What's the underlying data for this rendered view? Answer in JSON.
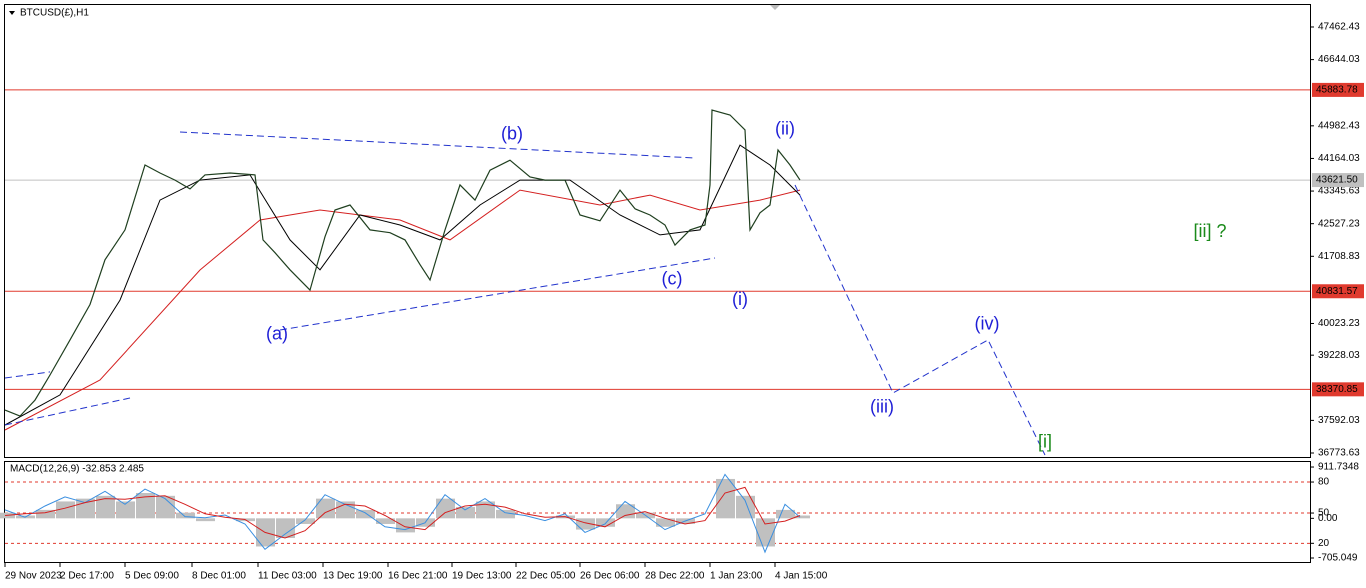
{
  "chart_data": {
    "type": "line",
    "title": "BTCUSD(£),H1",
    "xlim": [
      0,
      1305
    ],
    "ylim": [
      36673,
      48014
    ],
    "yticks": [
      47462.43,
      46644.03,
      44982.43,
      44164.03,
      43345.63,
      42527.23,
      41708.83,
      40023.23,
      39228.03,
      37592.03,
      36773.63
    ],
    "xticks": [
      {
        "value": 0,
        "label": "29 Nov 2023"
      },
      {
        "value": 55,
        "label": "2 Dec 17:00"
      },
      {
        "value": 120,
        "label": "5 Dec 09:00"
      },
      {
        "value": 187,
        "label": "8 Dec 01:00"
      },
      {
        "value": 253,
        "label": "11 Dec 03:00"
      },
      {
        "value": 318,
        "label": "13 Dec 19:00"
      },
      {
        "value": 383,
        "label": "16 Dec 21:00"
      },
      {
        "value": 447,
        "label": "19 Dec 13:00"
      },
      {
        "value": 511,
        "label": "22 Dec 05:00"
      },
      {
        "value": 575,
        "label": "26 Dec 06:00"
      },
      {
        "value": 640,
        "label": "28 Dec 22:00"
      },
      {
        "value": 705,
        "label": "1 Jan 23:00"
      },
      {
        "value": 770,
        "label": "4 Jan 15:00"
      }
    ],
    "color": "#1f3f1f",
    "x": [
      0,
      15,
      30,
      45,
      65,
      85,
      100,
      120,
      140,
      155,
      170,
      185,
      200,
      225,
      250,
      258,
      270,
      285,
      305,
      320,
      330,
      345,
      365,
      385,
      400,
      415,
      425,
      440,
      455,
      470,
      485,
      505,
      525,
      540,
      560,
      575,
      595,
      615,
      630,
      645,
      660,
      670,
      685,
      700,
      705,
      707,
      725,
      740,
      745,
      755,
      765,
      773,
      785,
      795
    ],
    "values": [
      37850,
      37700,
      38100,
      38730,
      39610,
      40500,
      41620,
      42370,
      44000,
      43800,
      43620,
      43400,
      43750,
      43800,
      43750,
      42120,
      41800,
      41370,
      40860,
      42200,
      42870,
      42995,
      42370,
      42300,
      42120,
      41500,
      41115,
      42370,
      43500,
      43120,
      43870,
      44120,
      43700,
      43620,
      43620,
      42745,
      42600,
      43370,
      42900,
      42745,
      42495,
      41990,
      42370,
      42495,
      43500,
      45380,
      45255,
      44880,
      42370,
      42800,
      42995,
      44375,
      44000,
      43620
    ],
    "overlays": [
      {
        "color": "#d42020",
        "x": [
          0,
          95,
          195,
          255,
          315,
          395,
          445,
          515,
          595,
          645,
          695,
          755,
          795
        ],
        "values": [
          37350,
          38605,
          41365,
          42620,
          42870,
          42620,
          42120,
          43370,
          42995,
          43245,
          42870,
          43120,
          43370
        ]
      },
      {
        "color": "#000000",
        "x": [
          0,
          55,
          115,
          155,
          195,
          245,
          285,
          315,
          355,
          395,
          435,
          475,
          515,
          565,
          615,
          655,
          695,
          735,
          765,
          795
        ],
        "values": [
          37475,
          38230,
          40610,
          43120,
          43620,
          43750,
          42120,
          41370,
          42745,
          42495,
          42120,
          42995,
          43620,
          43620,
          42745,
          42245,
          42370,
          44500,
          44000,
          43245
        ]
      }
    ],
    "levels": [
      {
        "value": 45883.78,
        "color": "#e03a2e"
      },
      {
        "value": 40831.57,
        "color": "#e03a2e"
      },
      {
        "value": 38370.85,
        "color": "#e03a2e"
      },
      {
        "value": 43621.5,
        "label": "43621.50",
        "color": "#c0c0c0"
      }
    ],
    "trendlines": [
      {
        "color": "#2233cc",
        "x": [
          175,
          690
        ],
        "values": [
          44828,
          44175
        ]
      },
      {
        "color": "#2233cc",
        "x": [
          275,
          710
        ],
        "values": [
          39860,
          41666
        ]
      },
      {
        "color": "#2233cc",
        "x": [
          0,
          125
        ],
        "values": [
          37476,
          38153
        ]
      },
      {
        "color": "#2233cc",
        "x": [
          0,
          45
        ],
        "values": [
          38656,
          38807
        ]
      },
      {
        "color": "#2233cc",
        "x": [
          790,
          888,
          983,
          1040
        ],
        "values": [
          43498,
          38280,
          39610,
          36724
        ]
      }
    ],
    "annotations": [
      {
        "text": "(a)",
        "x": 272,
        "y": 39735,
        "color": "#1e1ed6"
      },
      {
        "text": "(b)",
        "x": 507,
        "y": 44753,
        "color": "#1e1ed6"
      },
      {
        "text": "(c)",
        "x": 667,
        "y": 41115,
        "color": "#1e1ed6"
      },
      {
        "text": "(i)",
        "x": 735,
        "y": 40612,
        "color": "#1e1ed6"
      },
      {
        "text": "(ii)",
        "x": 780,
        "y": 44880,
        "color": "#1e1ed6"
      },
      {
        "text": "(iii)",
        "x": 877,
        "y": 37903,
        "color": "#1e1ed6"
      },
      {
        "text": "(iv)",
        "x": 982,
        "y": 39985,
        "color": "#1e1ed6"
      },
      {
        "text": "[i]",
        "x": 1040,
        "y": 37025,
        "color": "#1a8a1a"
      },
      {
        "text": "[ii] ?",
        "x": 1205,
        "y": 42318,
        "color": "#1a8a1a"
      }
    ],
    "macd": {
      "label": "MACD(12,26,9) -32.853 2.485",
      "ylim": [
        -776,
        1001
      ],
      "yticks": [
        911.7348,
        {
          "value": 645,
          "label": "80"
        },
        {
          "value": 94,
          "label": "50"
        },
        {
          "value": 0,
          "label": "0.00"
        },
        {
          "value": -444,
          "label": "20"
        },
        -705.049
      ],
      "levels": [
        645,
        94,
        -444
      ],
      "x": [
        0,
        20,
        40,
        60,
        80,
        100,
        120,
        140,
        160,
        180,
        200,
        220,
        240,
        260,
        280,
        300,
        320,
        340,
        360,
        380,
        400,
        420,
        440,
        460,
        480,
        500,
        520,
        540,
        560,
        580,
        600,
        620,
        640,
        660,
        680,
        700,
        720,
        740,
        760,
        780,
        795
      ],
      "histogram": [
        100,
        50,
        150,
        300,
        350,
        400,
        300,
        450,
        400,
        100,
        -50,
        0,
        -50,
        -500,
        -350,
        -100,
        350,
        300,
        150,
        -100,
        -250,
        -150,
        350,
        200,
        300,
        150,
        0,
        0,
        50,
        -200,
        -150,
        250,
        100,
        -150,
        -100,
        0,
        700,
        400,
        -500,
        150,
        50
      ],
      "signal": [
        50,
        80,
        100,
        180,
        280,
        350,
        340,
        380,
        400,
        250,
        80,
        20,
        -20,
        -250,
        -350,
        -220,
        100,
        250,
        220,
        50,
        -150,
        -200,
        100,
        220,
        250,
        200,
        80,
        20,
        30,
        -80,
        -150,
        50,
        120,
        0,
        -100,
        -40,
        450,
        550,
        -100,
        -50,
        50
      ],
      "main": [
        150,
        20,
        220,
        380,
        280,
        480,
        250,
        520,
        350,
        30,
        10,
        60,
        -100,
        -550,
        -280,
        -30,
        420,
        250,
        100,
        -150,
        -200,
        -80,
        420,
        150,
        350,
        100,
        50,
        -40,
        80,
        -250,
        -100,
        300,
        60,
        -200,
        -50,
        80,
        780,
        320,
        -600,
        250,
        20
      ]
    }
  }
}
